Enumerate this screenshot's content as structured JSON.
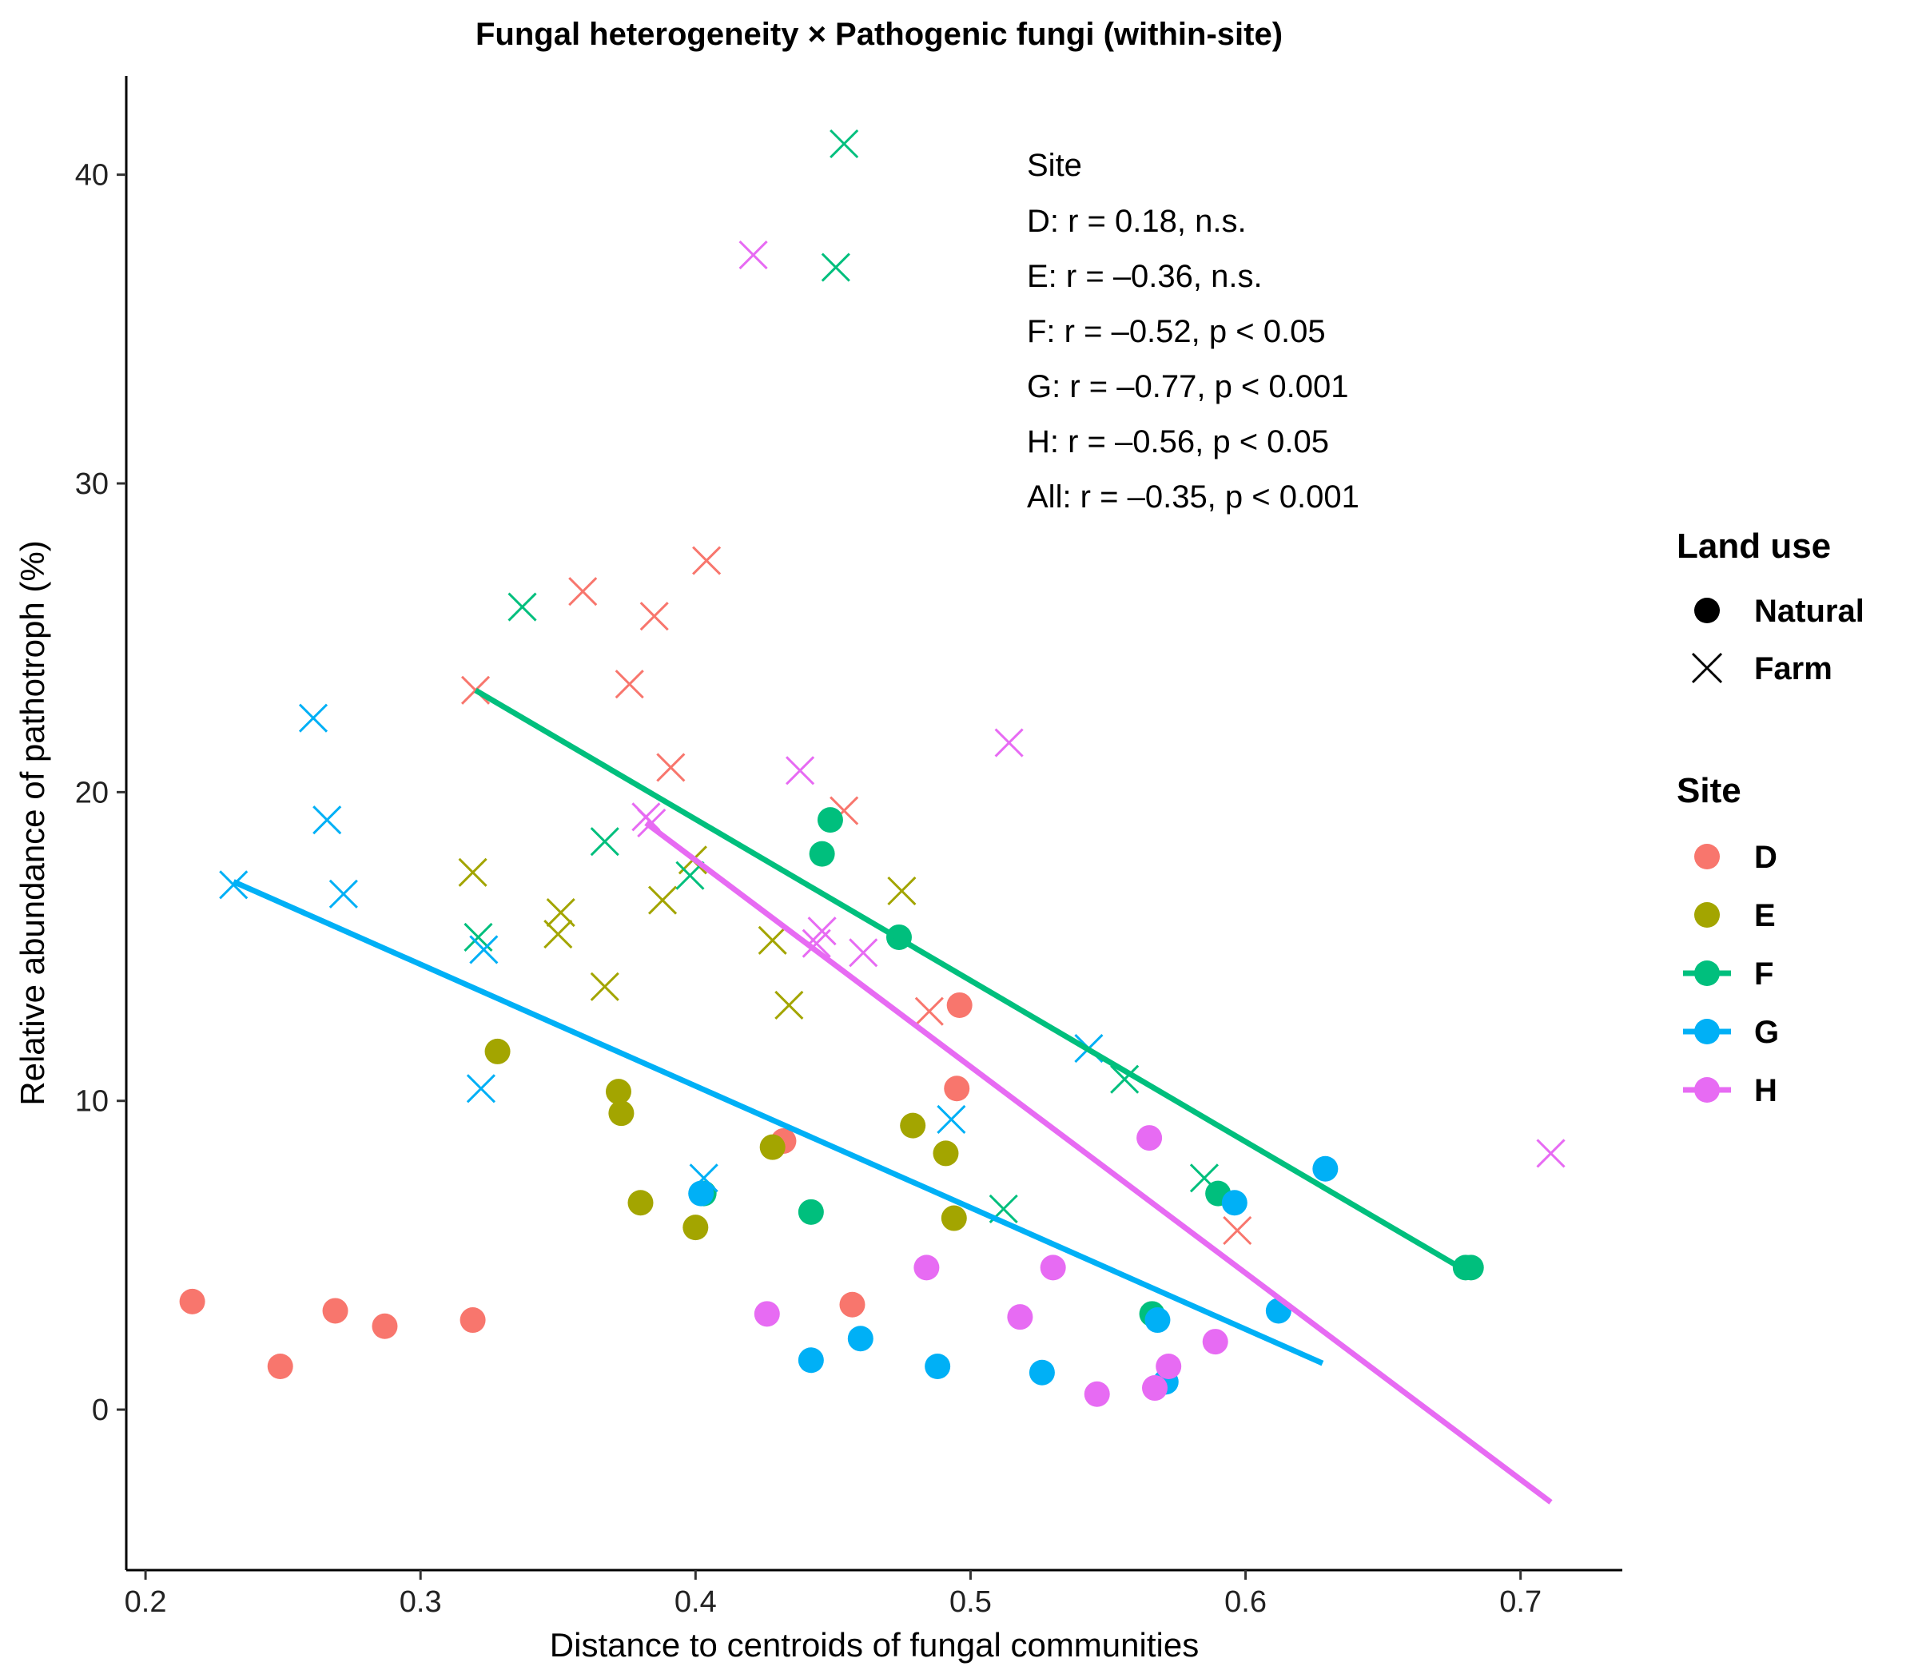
{
  "chart_data": {
    "type": "scatter",
    "title": "Fungal heterogeneity × Pathogenic fungi (within-site)",
    "xlabel": "Distance to centroids of fungal communities",
    "ylabel": "Relative abundance of pathotroph (%)",
    "xlim": [
      0.193,
      0.737
    ],
    "ylim": [
      -5.2,
      43.2
    ],
    "x_ticks": [
      "0.2",
      "0.3",
      "0.4",
      "0.5",
      "0.6",
      "0.7"
    ],
    "x_tick_values": [
      0.2,
      0.3,
      0.4,
      0.5,
      0.6,
      0.7
    ],
    "y_ticks": [
      "0",
      "10",
      "20",
      "30",
      "40"
    ],
    "y_tick_values": [
      0,
      10,
      20,
      30,
      40
    ],
    "grid": false,
    "legend_position": "right",
    "annotation": {
      "header": "Site",
      "lines": [
        "D: r = 0.18, n.s.",
        "E: r = –0.36, n.s.",
        "F: r = –0.52, p < 0.05",
        "G: r = –0.77, p < 0.001",
        "H: r = –0.56, p < 0.05",
        "All: r = –0.35, p < 0.001"
      ]
    },
    "legend_landuse": {
      "title": "Land use",
      "items": [
        {
          "label": "Natural",
          "shape": "circle"
        },
        {
          "label": "Farm",
          "shape": "cross"
        }
      ]
    },
    "legend_site": {
      "title": "Site",
      "items": [
        {
          "label": "D",
          "color": "#F8766D",
          "line": false
        },
        {
          "label": "E",
          "color": "#A3A500",
          "line": false
        },
        {
          "label": "F",
          "color": "#00BF7D",
          "line": true
        },
        {
          "label": "G",
          "color": "#00B0F6",
          "line": true
        },
        {
          "label": "H",
          "color": "#E76BF3",
          "line": true
        }
      ]
    },
    "series": [
      {
        "name": "D",
        "color": "#F8766D",
        "natural": [
          [
            0.217,
            3.5
          ],
          [
            0.249,
            1.4
          ],
          [
            0.269,
            3.2
          ],
          [
            0.287,
            2.7
          ],
          [
            0.319,
            2.9
          ],
          [
            0.432,
            8.7
          ],
          [
            0.457,
            3.4
          ],
          [
            0.495,
            10.4
          ],
          [
            0.496,
            13.1
          ]
        ],
        "farm": [
          [
            0.32,
            23.3
          ],
          [
            0.359,
            26.5
          ],
          [
            0.376,
            23.5
          ],
          [
            0.385,
            25.7
          ],
          [
            0.391,
            20.8
          ],
          [
            0.404,
            27.5
          ],
          [
            0.454,
            19.4
          ],
          [
            0.485,
            12.9
          ],
          [
            0.597,
            5.8
          ]
        ]
      },
      {
        "name": "E",
        "color": "#A3A500",
        "natural": [
          [
            0.328,
            11.6
          ],
          [
            0.372,
            10.3
          ],
          [
            0.373,
            9.6
          ],
          [
            0.38,
            6.7
          ],
          [
            0.4,
            5.9
          ],
          [
            0.428,
            8.5
          ],
          [
            0.479,
            9.2
          ],
          [
            0.491,
            8.3
          ],
          [
            0.494,
            6.2
          ]
        ],
        "farm": [
          [
            0.319,
            17.4
          ],
          [
            0.35,
            15.4
          ],
          [
            0.351,
            16.1
          ],
          [
            0.367,
            13.7
          ],
          [
            0.388,
            16.5
          ],
          [
            0.399,
            17.8
          ],
          [
            0.428,
            15.2
          ],
          [
            0.434,
            13.1
          ],
          [
            0.475,
            16.8
          ]
        ],
        "fit": null
      },
      {
        "name": "F",
        "color": "#00BF7D",
        "natural": [
          [
            0.403,
            7.0
          ],
          [
            0.442,
            6.4
          ],
          [
            0.446,
            18.0
          ],
          [
            0.449,
            19.1
          ],
          [
            0.474,
            15.3
          ],
          [
            0.566,
            3.1
          ],
          [
            0.59,
            7.0
          ],
          [
            0.68,
            4.6
          ],
          [
            0.682,
            4.6
          ]
        ],
        "farm": [
          [
            0.321,
            15.3
          ],
          [
            0.337,
            26.0
          ],
          [
            0.367,
            18.4
          ],
          [
            0.398,
            17.3
          ],
          [
            0.451,
            37.0
          ],
          [
            0.454,
            41.0
          ],
          [
            0.512,
            6.5
          ],
          [
            0.556,
            10.7
          ],
          [
            0.585,
            7.5
          ]
        ],
        "fit": [
          [
            0.32,
            23.3
          ],
          [
            0.68,
            4.5
          ]
        ]
      },
      {
        "name": "G",
        "color": "#00B0F6",
        "natural": [
          [
            0.402,
            7.0
          ],
          [
            0.442,
            1.6
          ],
          [
            0.46,
            2.3
          ],
          [
            0.488,
            1.4
          ],
          [
            0.526,
            1.2
          ],
          [
            0.568,
            2.9
          ],
          [
            0.571,
            0.9
          ],
          [
            0.596,
            6.7
          ],
          [
            0.612,
            3.2
          ],
          [
            0.629,
            7.8
          ]
        ],
        "farm": [
          [
            0.232,
            17.0
          ],
          [
            0.261,
            22.4
          ],
          [
            0.266,
            19.1
          ],
          [
            0.272,
            16.7
          ],
          [
            0.322,
            10.4
          ],
          [
            0.323,
            14.9
          ],
          [
            0.403,
            7.5
          ],
          [
            0.493,
            9.4
          ],
          [
            0.543,
            11.7
          ]
        ],
        "fit": [
          [
            0.232,
            17.1
          ],
          [
            0.628,
            1.5
          ]
        ]
      },
      {
        "name": "H",
        "color": "#E76BF3",
        "natural": [
          [
            0.426,
            3.1
          ],
          [
            0.484,
            4.6
          ],
          [
            0.518,
            3.0
          ],
          [
            0.53,
            4.6
          ],
          [
            0.546,
            0.5
          ],
          [
            0.565,
            8.8
          ],
          [
            0.567,
            0.7
          ],
          [
            0.572,
            1.4
          ],
          [
            0.589,
            2.2
          ]
        ],
        "farm": [
          [
            0.382,
            19.2
          ],
          [
            0.384,
            19.0
          ],
          [
            0.421,
            37.4
          ],
          [
            0.438,
            20.7
          ],
          [
            0.444,
            15.1
          ],
          [
            0.446,
            15.5
          ],
          [
            0.461,
            14.8
          ],
          [
            0.514,
            21.6
          ],
          [
            0.711,
            8.3
          ]
        ],
        "fit": [
          [
            0.382,
            19.0
          ],
          [
            0.711,
            -3.0
          ]
        ]
      }
    ]
  }
}
